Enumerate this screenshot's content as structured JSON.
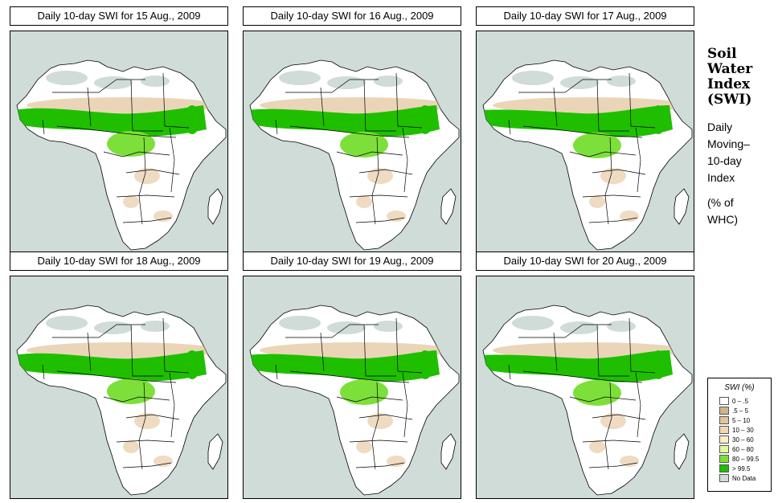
{
  "panels": [
    {
      "title": "Daily 10-day SWI for  15 Aug., 2009",
      "variant": 0
    },
    {
      "title": "Daily 10-day SWI for  16 Aug., 2009",
      "variant": 1
    },
    {
      "title": "Daily 10-day SWI for  17 Aug., 2009",
      "variant": 2
    },
    {
      "title": "Daily 10-day SWI for  18 Aug., 2009",
      "variant": 3
    },
    {
      "title": "Daily 10-day SWI for  19 Aug., 2009",
      "variant": 4
    },
    {
      "title": "Daily 10-day SWI for  20 Aug., 2009",
      "variant": 5
    }
  ],
  "side": {
    "title": [
      "Soil",
      "Water",
      "Index",
      "(SWI)"
    ],
    "sub": [
      "Daily",
      "Moving–",
      "10-day",
      "Index"
    ],
    "unit": [
      "(% of",
      " WHC)"
    ]
  },
  "legend": {
    "title": "SWI (%)",
    "items": [
      {
        "label": "0 – .5",
        "color": "#ffffff"
      },
      {
        "label": ".5 – 5",
        "color": "#d2b48c"
      },
      {
        "label": "5 – 10",
        "color": "#e2c39a"
      },
      {
        "label": "10 – 30",
        "color": "#f0d9b0"
      },
      {
        "label": "30 – 60",
        "color": "#f8efc4"
      },
      {
        "label": "60 – 80",
        "color": "#e6f5a0"
      },
      {
        "label": "80 – 99.5",
        "color": "#7de03a"
      },
      {
        "label": "> 99.5",
        "color": "#1fbf00"
      },
      {
        "label": "No Data",
        "color": "#cfdcd8"
      }
    ]
  },
  "colors": {
    "ocean": "#cfdcd8",
    "land": "#ffffff",
    "border": "#000000",
    "dry": "#e2c39a",
    "wet": "#7de03a",
    "saturated": "#1fbf00",
    "nodata": "#cfdcd8"
  }
}
